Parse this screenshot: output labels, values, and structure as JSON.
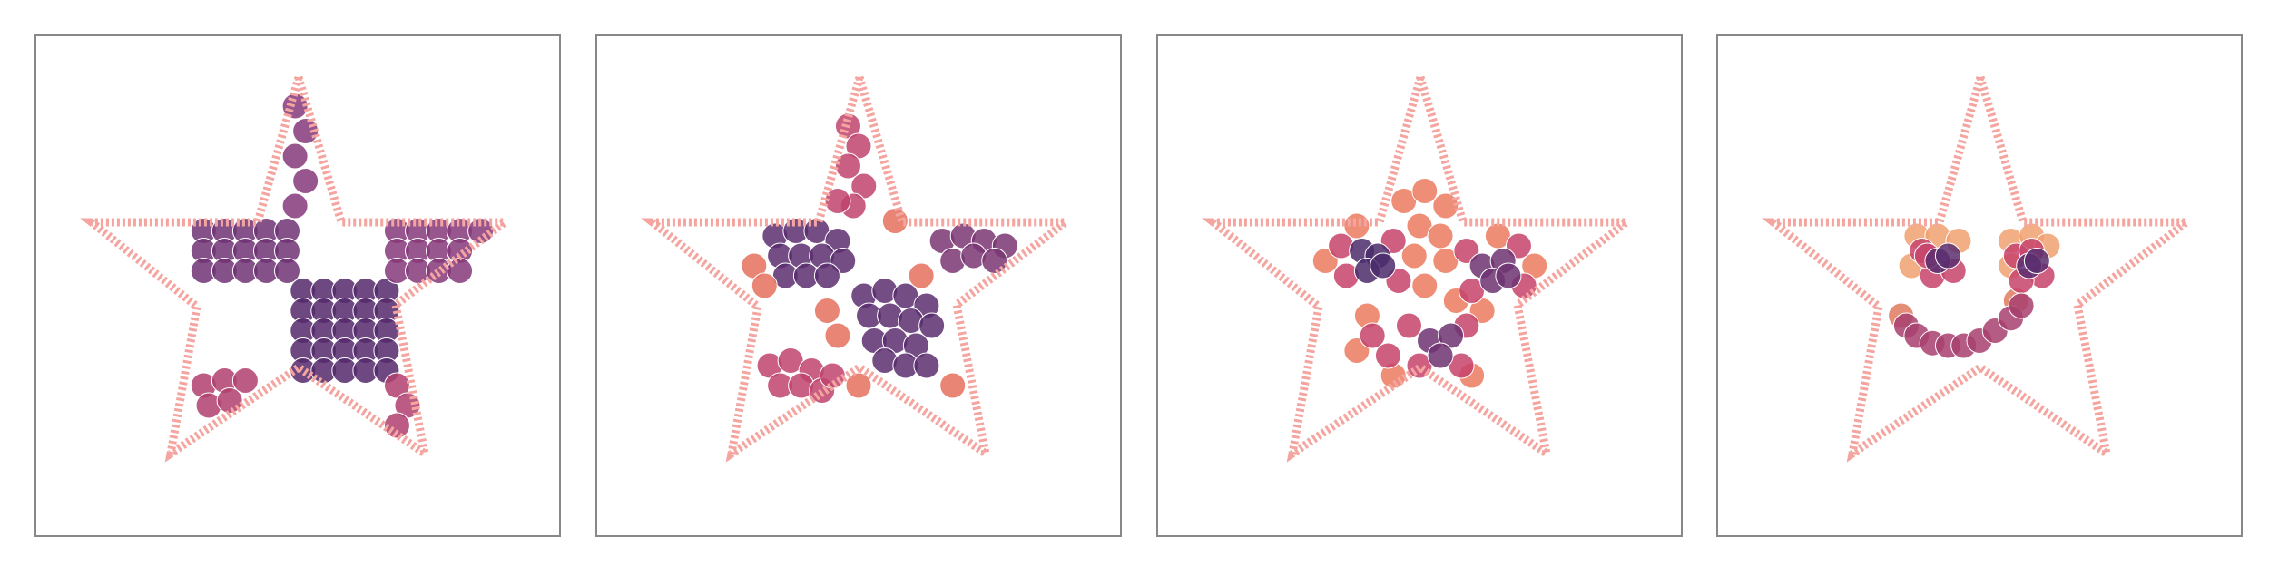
{
  "chart_data": [
    {
      "type": "scatter",
      "xlim": [
        0,
        100
      ],
      "ylim": [
        100,
        0
      ],
      "series": [
        {
          "color": "#55296b",
          "x": [
            51,
            55,
            59,
            63,
            67,
            51,
            55,
            59,
            63,
            67,
            51,
            55,
            59,
            63,
            67,
            51,
            55,
            59,
            63,
            67,
            51,
            55,
            59,
            63,
            67
          ],
          "values": [
            51,
            51,
            51,
            51,
            51,
            55,
            55,
            55,
            55,
            55,
            59,
            59,
            59,
            59,
            59,
            63,
            63,
            63,
            63,
            63,
            67,
            67,
            67,
            67,
            67
          ]
        },
        {
          "color": "#6e3274",
          "x": [
            32,
            36,
            40,
            44,
            48,
            32,
            36,
            40,
            44,
            48,
            32,
            36,
            40,
            44,
            48
          ],
          "values": [
            39,
            39,
            39,
            39,
            39,
            43,
            43,
            43,
            43,
            43,
            47,
            47,
            47,
            47,
            47
          ]
        },
        {
          "color": "#86387a",
          "x": [
            69,
            73,
            77,
            81,
            85,
            69,
            73,
            77,
            81,
            69,
            73,
            77,
            81,
            49.5,
            51.5,
            49.5,
            51.5,
            49.5
          ],
          "values": [
            39,
            39,
            39,
            39,
            39,
            43,
            43,
            43,
            43,
            47,
            47,
            47,
            47,
            14,
            19,
            24,
            29,
            34
          ]
        },
        {
          "color": "#b0406e",
          "x": [
            32,
            36,
            40,
            33,
            37,
            69,
            71,
            69
          ],
          "values": [
            70,
            69,
            69,
            74,
            73,
            70,
            74,
            78
          ]
        }
      ]
    },
    {
      "type": "scatter",
      "xlim": [
        0,
        100
      ],
      "ylim": [
        100,
        0
      ],
      "series": [
        {
          "color": "#5b2e6e",
          "x": [
            34,
            38,
            42,
            46,
            35,
            39,
            43,
            47,
            36,
            40,
            44,
            51,
            55,
            59,
            63,
            52,
            56,
            60,
            64,
            53,
            57,
            61,
            55,
            59,
            63
          ],
          "values": [
            40,
            39,
            39,
            41,
            44,
            44,
            44,
            45,
            48,
            48,
            48,
            52,
            51,
            52,
            54,
            56,
            56,
            57,
            58,
            61,
            61,
            62,
            65,
            66,
            66
          ]
        },
        {
          "color": "#7a3673",
          "x": [
            66,
            70,
            74,
            78,
            68,
            72,
            76
          ],
          "values": [
            41,
            40,
            41,
            42,
            45,
            44,
            45
          ]
        },
        {
          "color": "#c0436c",
          "x": [
            48,
            50,
            48,
            51,
            49,
            46,
            33,
            37,
            41,
            35,
            39,
            43,
            45
          ],
          "values": [
            18,
            22,
            26,
            30,
            34,
            33,
            66,
            65,
            67,
            70,
            70,
            71,
            68
          ]
        },
        {
          "color": "#e5705c",
          "x": [
            30,
            32,
            44,
            46,
            62,
            57,
            68,
            50
          ],
          "values": [
            46,
            50,
            55,
            60,
            48,
            37,
            70,
            70
          ]
        }
      ]
    },
    {
      "type": "scatter",
      "xlim": [
        0,
        100
      ],
      "ylim": [
        100,
        0
      ],
      "series": [
        {
          "color": "#ec7a5e",
          "x": [
            47,
            51,
            55,
            50,
            54,
            49,
            55,
            51,
            32,
            38,
            72,
            65,
            40,
            38,
            45,
            60,
            62,
            57
          ],
          "values": [
            33,
            31,
            34,
            38,
            40,
            44,
            45,
            50,
            45,
            38,
            46,
            40,
            56,
            63,
            68,
            68,
            55,
            53
          ]
        },
        {
          "color": "#c7436b",
          "x": [
            35,
            45,
            36,
            46,
            59,
            69,
            60,
            70,
            48,
            59,
            50,
            58,
            41,
            44
          ],
          "values": [
            42,
            41,
            48,
            49,
            43,
            42,
            51,
            50,
            58,
            58,
            66,
            66,
            60,
            64
          ]
        },
        {
          "color": "#6d3371",
          "x": [
            62,
            66,
            64,
            67,
            52,
            56,
            54
          ],
          "values": [
            46,
            45,
            49,
            48,
            61,
            60,
            64
          ]
        },
        {
          "color": "#4b2c6b",
          "x": [
            39,
            42,
            40,
            43
          ],
          "values": [
            43,
            44,
            47,
            46
          ]
        }
      ]
    },
    {
      "type": "scatter",
      "xlim": [
        0,
        100
      ],
      "ylim": [
        100,
        0
      ],
      "series": [
        {
          "color": "#f0a070",
          "x": [
            38,
            42,
            46,
            37,
            56,
            60,
            63,
            56
          ],
          "values": [
            40,
            40,
            41,
            46,
            41,
            40,
            42,
            46
          ]
        },
        {
          "color": "#e07a5f",
          "x": [
            35,
            57
          ],
          "values": [
            56,
            53
          ]
        },
        {
          "color": "#c7436b",
          "x": [
            39,
            41,
            45,
            40,
            57,
            62,
            58,
            60
          ],
          "values": [
            43,
            48,
            47,
            44,
            44,
            48,
            49,
            43
          ]
        },
        {
          "color": "#a83f6e",
          "x": [
            36,
            38,
            41,
            44,
            47,
            50,
            53,
            56,
            58
          ],
          "values": [
            58,
            60,
            61.5,
            62,
            62,
            61,
            59,
            56.5,
            54
          ]
        },
        {
          "color": "#5b2e6e",
          "x": [
            42,
            44,
            59.5,
            61
          ],
          "values": [
            45,
            44,
            46,
            45
          ]
        }
      ]
    }
  ]
}
